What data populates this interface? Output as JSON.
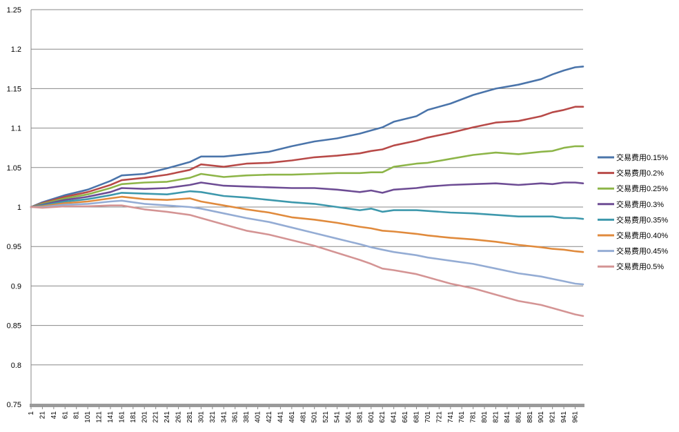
{
  "chart_data": {
    "type": "line",
    "title": "",
    "xlabel": "",
    "ylabel": "",
    "xlim": [
      1,
      975
    ],
    "ylim": [
      0.75,
      1.25
    ],
    "yticks": [
      0.75,
      0.8,
      0.85,
      0.9,
      0.95,
      1,
      1.05,
      1.1,
      1.15,
      1.2,
      1.25
    ],
    "ytick_labels": [
      "0.75",
      "0.8",
      "0.85",
      "0.9",
      "0.95",
      "1",
      "1.05",
      "1.1",
      "1.15",
      "1.2",
      "1.25"
    ],
    "xticks": [
      1,
      21,
      41,
      61,
      81,
      101,
      121,
      141,
      161,
      181,
      201,
      221,
      241,
      261,
      281,
      301,
      321,
      341,
      361,
      381,
      401,
      421,
      441,
      461,
      481,
      501,
      521,
      541,
      561,
      581,
      601,
      621,
      641,
      661,
      681,
      701,
      721,
      741,
      761,
      781,
      801,
      821,
      841,
      861,
      881,
      901,
      921,
      941,
      961
    ],
    "xtick_labels": [
      "1",
      "21",
      "41",
      "61",
      "81",
      "101",
      "121",
      "141",
      "161",
      "181",
      "201",
      "221",
      "241",
      "261",
      "281",
      "301",
      "321",
      "341",
      "361",
      "381",
      "401",
      "421",
      "441",
      "461",
      "481",
      "501",
      "521",
      "541",
      "561",
      "581",
      "601",
      "621",
      "641",
      "661",
      "681",
      "701",
      "721",
      "741",
      "761",
      "781",
      "801",
      "821",
      "841",
      "861",
      "881",
      "901",
      "921",
      "941",
      "961"
    ],
    "grid": "horizontal",
    "legend_position": "right",
    "series": [
      {
        "name": "交易费用0.15%",
        "color": "#4a74aa",
        "x": [
          1,
          21,
          61,
          101,
          141,
          161,
          201,
          241,
          281,
          301,
          341,
          381,
          421,
          461,
          501,
          541,
          581,
          601,
          621,
          641,
          681,
          701,
          741,
          781,
          821,
          861,
          901,
          921,
          941,
          961,
          975
        ],
        "values": [
          1.0,
          1.006,
          1.015,
          1.022,
          1.033,
          1.04,
          1.042,
          1.049,
          1.057,
          1.064,
          1.064,
          1.067,
          1.07,
          1.077,
          1.083,
          1.087,
          1.093,
          1.097,
          1.101,
          1.108,
          1.115,
          1.123,
          1.131,
          1.142,
          1.15,
          1.155,
          1.162,
          1.168,
          1.173,
          1.177,
          1.178
        ]
      },
      {
        "name": "交易费用0.2%",
        "color": "#b84a48",
        "x": [
          1,
          21,
          61,
          101,
          141,
          161,
          201,
          241,
          281,
          301,
          341,
          381,
          421,
          461,
          501,
          541,
          581,
          601,
          621,
          641,
          681,
          701,
          741,
          781,
          821,
          861,
          901,
          921,
          941,
          961,
          975
        ],
        "values": [
          1.0,
          1.005,
          1.013,
          1.019,
          1.028,
          1.034,
          1.037,
          1.041,
          1.047,
          1.054,
          1.051,
          1.055,
          1.056,
          1.059,
          1.063,
          1.065,
          1.068,
          1.071,
          1.073,
          1.078,
          1.084,
          1.088,
          1.094,
          1.101,
          1.107,
          1.109,
          1.115,
          1.12,
          1.123,
          1.127,
          1.127
        ]
      },
      {
        "name": "交易费用0.25%",
        "color": "#8db548",
        "x": [
          1,
          21,
          61,
          101,
          141,
          161,
          201,
          241,
          281,
          301,
          341,
          381,
          421,
          461,
          501,
          541,
          581,
          601,
          621,
          641,
          681,
          701,
          741,
          781,
          821,
          861,
          901,
          921,
          941,
          961,
          975
        ],
        "values": [
          1.0,
          1.004,
          1.011,
          1.016,
          1.024,
          1.029,
          1.031,
          1.032,
          1.037,
          1.042,
          1.038,
          1.04,
          1.041,
          1.041,
          1.042,
          1.043,
          1.043,
          1.044,
          1.044,
          1.051,
          1.055,
          1.056,
          1.061,
          1.066,
          1.069,
          1.067,
          1.07,
          1.071,
          1.075,
          1.077,
          1.077
        ]
      },
      {
        "name": "交易费用0.3%",
        "color": "#6d4c94",
        "x": [
          1,
          21,
          61,
          101,
          141,
          161,
          201,
          241,
          281,
          301,
          341,
          381,
          421,
          461,
          501,
          541,
          581,
          601,
          621,
          641,
          681,
          701,
          741,
          781,
          821,
          861,
          901,
          921,
          941,
          961,
          975
        ],
        "values": [
          1.0,
          1.003,
          1.009,
          1.013,
          1.019,
          1.024,
          1.023,
          1.024,
          1.028,
          1.031,
          1.027,
          1.026,
          1.025,
          1.024,
          1.024,
          1.022,
          1.019,
          1.021,
          1.018,
          1.022,
          1.024,
          1.026,
          1.028,
          1.029,
          1.03,
          1.028,
          1.03,
          1.029,
          1.031,
          1.031,
          1.03
        ]
      },
      {
        "name": "交易费用0.35%",
        "color": "#3d98ac",
        "x": [
          1,
          21,
          61,
          101,
          141,
          161,
          201,
          241,
          281,
          301,
          341,
          381,
          421,
          461,
          501,
          541,
          581,
          601,
          621,
          641,
          681,
          701,
          741,
          781,
          821,
          861,
          901,
          921,
          941,
          961,
          975
        ],
        "values": [
          1.0,
          1.002,
          1.007,
          1.01,
          1.015,
          1.018,
          1.017,
          1.016,
          1.02,
          1.019,
          1.014,
          1.012,
          1.009,
          1.006,
          1.004,
          1.0,
          0.996,
          0.998,
          0.994,
          0.996,
          0.996,
          0.995,
          0.993,
          0.992,
          0.99,
          0.988,
          0.988,
          0.988,
          0.986,
          0.986,
          0.985
        ]
      },
      {
        "name": "交易费用0.40%",
        "color": "#e08a3c",
        "x": [
          1,
          21,
          61,
          101,
          141,
          161,
          201,
          241,
          281,
          301,
          341,
          381,
          421,
          461,
          501,
          541,
          581,
          601,
          621,
          641,
          681,
          701,
          741,
          781,
          821,
          861,
          901,
          921,
          941,
          961,
          975
        ],
        "values": [
          1.0,
          1.001,
          1.005,
          1.007,
          1.011,
          1.013,
          1.01,
          1.009,
          1.011,
          1.007,
          1.002,
          0.997,
          0.993,
          0.987,
          0.984,
          0.98,
          0.975,
          0.973,
          0.97,
          0.969,
          0.966,
          0.964,
          0.961,
          0.959,
          0.956,
          0.952,
          0.949,
          0.947,
          0.946,
          0.944,
          0.943
        ]
      },
      {
        "name": "交易费用0.45%",
        "color": "#94acd4",
        "x": [
          1,
          21,
          61,
          101,
          141,
          161,
          201,
          241,
          281,
          301,
          341,
          381,
          421,
          461,
          501,
          541,
          581,
          601,
          621,
          641,
          681,
          701,
          741,
          781,
          821,
          861,
          901,
          921,
          941,
          961,
          975
        ],
        "values": [
          1.0,
          1.0,
          1.003,
          1.004,
          1.007,
          1.008,
          1.004,
          1.002,
          1.0,
          0.998,
          0.992,
          0.986,
          0.981,
          0.974,
          0.967,
          0.96,
          0.953,
          0.949,
          0.946,
          0.943,
          0.939,
          0.936,
          0.932,
          0.928,
          0.922,
          0.916,
          0.912,
          0.909,
          0.906,
          0.903,
          0.902
        ]
      },
      {
        "name": "交易费用0.5%",
        "color": "#d49494",
        "x": [
          1,
          21,
          61,
          101,
          141,
          161,
          201,
          241,
          281,
          301,
          341,
          381,
          421,
          461,
          501,
          541,
          581,
          601,
          621,
          641,
          681,
          701,
          741,
          781,
          821,
          861,
          901,
          921,
          941,
          961,
          975
        ],
        "values": [
          1.0,
          0.999,
          1.001,
          1.001,
          1.002,
          1.002,
          0.997,
          0.994,
          0.99,
          0.986,
          0.978,
          0.97,
          0.965,
          0.958,
          0.951,
          0.942,
          0.933,
          0.928,
          0.922,
          0.92,
          0.915,
          0.911,
          0.903,
          0.897,
          0.889,
          0.881,
          0.876,
          0.872,
          0.868,
          0.864,
          0.862
        ]
      }
    ]
  }
}
